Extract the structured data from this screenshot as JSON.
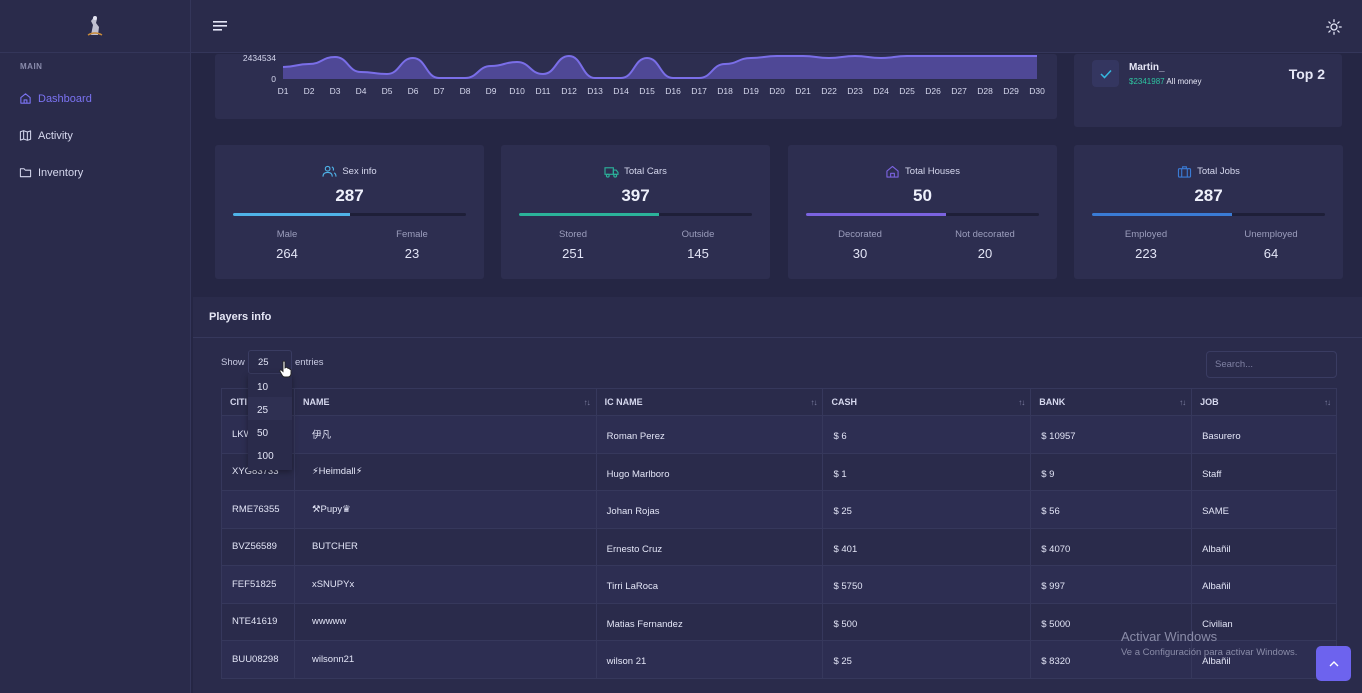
{
  "app": {
    "logo_icon": "cowboy-logo-icon"
  },
  "sidebar": {
    "section": "MAIN",
    "items": [
      {
        "label": "Dashboard",
        "icon": "home-icon",
        "active": true
      },
      {
        "label": "Activity",
        "icon": "map-icon",
        "active": false
      },
      {
        "label": "Inventory",
        "icon": "folder-icon",
        "active": false
      }
    ]
  },
  "topbar": {
    "menu_icon": "hamburger-icon",
    "theme_icon": "sun-icon"
  },
  "chart_data": {
    "type": "area",
    "title": "",
    "x": [
      "D1",
      "D2",
      "D3",
      "D4",
      "D5",
      "D6",
      "D7",
      "D8",
      "D9",
      "D10",
      "D11",
      "D12",
      "D13",
      "D14",
      "D15",
      "D16",
      "D17",
      "D18",
      "D19",
      "D20",
      "D21",
      "D22",
      "D23",
      "D24",
      "D25",
      "D26",
      "D27",
      "D28",
      "D29",
      "D30"
    ],
    "y_ticks": [
      "2434534",
      "0"
    ],
    "color": "#6b5fd0",
    "note_visible_range": "cropped top"
  },
  "top_player": {
    "name": "Martin_",
    "money": "$2341987",
    "money_label": "All money",
    "rank": "Top 2"
  },
  "stats": [
    {
      "title": "Sex info",
      "icon": "users-icon",
      "total": "287",
      "fill": 0.5,
      "color": "#4fb3e8",
      "left_label": "Male",
      "left_value": "264",
      "right_label": "Female",
      "right_value": "23"
    },
    {
      "title": "Total Cars",
      "icon": "truck-icon",
      "total": "397",
      "fill": 0.6,
      "color": "#2bb39a",
      "left_label": "Stored",
      "left_value": "251",
      "right_label": "Outside",
      "right_value": "145"
    },
    {
      "title": "Total Houses",
      "icon": "house-icon",
      "total": "50",
      "fill": 0.6,
      "color": "#7b63e0",
      "left_label": "Decorated",
      "left_value": "30",
      "right_label": "Not decorated",
      "right_value": "20"
    },
    {
      "title": "Total Jobs",
      "icon": "briefcase-icon",
      "total": "287",
      "fill": 0.6,
      "color": "#3a7bd5",
      "left_label": "Employed",
      "left_value": "223",
      "right_label": "Unemployed",
      "right_value": "64"
    }
  ],
  "players": {
    "title": "Players info",
    "show_label": "Show",
    "entries_label": "entries",
    "page_length": "25",
    "page_length_options": [
      "10",
      "25",
      "50",
      "100"
    ],
    "search_placeholder": "Search...",
    "columns": [
      "CITI",
      "NAME",
      "IC NAME",
      "CASH",
      "BANK",
      "JOB"
    ],
    "rows": [
      [
        "LKW",
        "伊凡",
        "Roman Perez",
        "$ 6",
        "$ 10957",
        "Basurero"
      ],
      [
        "XYG83733",
        "⚡Heimdall⚡",
        "Hugo Marlboro",
        "$ 1",
        "$ 9",
        "Staff"
      ],
      [
        "RME76355",
        "⚒Pupy♛",
        "Johan Rojas",
        "$ 25",
        "$ 56",
        "SAME"
      ],
      [
        "BVZ56589",
        "BUTCHER",
        "Ernesto Cruz",
        "$ 401",
        "$ 4070",
        "Albañil"
      ],
      [
        "FEF51825",
        "xSNUPYx",
        "Tirri LaRoca",
        "$ 5750",
        "$ 997",
        "Albañil"
      ],
      [
        "NTE41619",
        "wwwww",
        "Matias Fernandez",
        "$ 500",
        "$ 5000",
        "Civilian"
      ],
      [
        "BUU08298",
        "wilsonn21",
        "wilson 21",
        "$ 25",
        "$ 8320",
        "Albañil"
      ]
    ]
  },
  "watermark": {
    "line1": "Activar Windows",
    "line2": "Ve a Configuración para activar Windows."
  },
  "scroll_top_icon": "chevron-up-icon"
}
